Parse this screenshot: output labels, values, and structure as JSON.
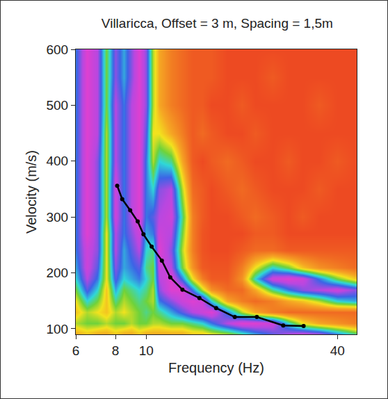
{
  "chart_data": {
    "type": "heatmap",
    "title": "Villaricca, Offset = 3 m, Spacing = 1,5m",
    "x_label": "Frequency (Hz)",
    "y_label": "Velocity (m/s)",
    "log": "x",
    "xlim": [
      6,
      46
    ],
    "xticks": [
      6,
      8,
      10,
      40
    ],
    "ylim": [
      90,
      600
    ],
    "yticks": [
      100,
      200,
      300,
      400,
      500,
      600
    ],
    "grid": false,
    "cells": {
      "x": [
        6,
        6.5,
        7,
        7.5,
        8,
        8.5,
        9,
        9.5,
        10,
        10.5,
        11,
        12,
        13,
        14,
        15,
        16,
        18,
        20,
        22,
        25,
        28,
        31,
        35,
        40,
        46
      ],
      "y": [
        90,
        110,
        130,
        150,
        170,
        190,
        210,
        240,
        270,
        300,
        350,
        400,
        450,
        500,
        550,
        600
      ],
      "zlim": [
        0,
        1
      ],
      "z": [
        [
          0.3,
          0.35,
          0.3,
          0.3,
          0.35,
          0.3,
          0.3,
          0.35,
          0.3,
          0.3,
          0.3,
          0.3,
          0.3,
          0.35,
          0.35,
          0.4,
          0.45,
          0.55,
          0.65,
          0.75,
          0.85,
          0.9,
          0.85,
          0.7,
          0.55
        ],
        [
          0.45,
          0.5,
          0.5,
          0.45,
          0.5,
          0.5,
          0.45,
          0.5,
          0.5,
          0.45,
          0.45,
          0.5,
          0.5,
          0.55,
          0.6,
          0.7,
          0.85,
          0.95,
          0.95,
          0.9,
          0.6,
          0.4,
          0.3,
          0.25,
          0.2
        ],
        [
          0.35,
          0.45,
          0.4,
          0.35,
          0.45,
          0.4,
          0.45,
          0.5,
          0.55,
          0.5,
          0.55,
          0.65,
          0.75,
          0.85,
          0.9,
          0.95,
          0.7,
          0.45,
          0.3,
          0.2,
          0.15,
          0.15,
          0.15,
          0.15,
          0.15
        ],
        [
          0.4,
          0.6,
          0.5,
          0.35,
          0.55,
          0.45,
          0.5,
          0.55,
          0.5,
          0.45,
          0.7,
          0.8,
          0.9,
          0.95,
          0.9,
          0.6,
          0.3,
          0.2,
          0.15,
          0.2,
          0.3,
          0.35,
          0.45,
          0.6,
          0.65
        ],
        [
          0.5,
          0.75,
          0.6,
          0.35,
          0.65,
          0.5,
          0.55,
          0.6,
          0.55,
          0.45,
          0.8,
          0.95,
          0.95,
          0.7,
          0.45,
          0.25,
          0.15,
          0.15,
          0.3,
          0.55,
          0.7,
          0.8,
          0.85,
          0.9,
          0.8
        ],
        [
          0.6,
          0.85,
          0.7,
          0.4,
          0.75,
          0.6,
          0.65,
          0.7,
          0.6,
          0.5,
          0.85,
          0.95,
          0.7,
          0.4,
          0.2,
          0.1,
          0.1,
          0.25,
          0.6,
          0.9,
          0.95,
          0.9,
          0.7,
          0.5,
          0.35
        ],
        [
          0.65,
          0.9,
          0.75,
          0.4,
          0.8,
          0.65,
          0.7,
          0.75,
          0.55,
          0.5,
          0.9,
          0.85,
          0.5,
          0.25,
          0.1,
          0.08,
          0.08,
          0.2,
          0.4,
          0.6,
          0.5,
          0.35,
          0.25,
          0.2,
          0.15
        ],
        [
          0.7,
          0.9,
          0.8,
          0.4,
          0.85,
          0.65,
          0.75,
          0.85,
          0.6,
          0.55,
          0.95,
          0.8,
          0.45,
          0.2,
          0.08,
          0.05,
          0.05,
          0.1,
          0.15,
          0.15,
          0.1,
          0.1,
          0.1,
          0.1,
          0.1
        ],
        [
          0.7,
          0.95,
          0.8,
          0.4,
          0.85,
          0.7,
          0.8,
          0.9,
          0.65,
          0.7,
          0.9,
          0.85,
          0.5,
          0.2,
          0.08,
          0.05,
          0.05,
          0.05,
          0.1,
          0.1,
          0.05,
          0.05,
          0.05,
          0.05,
          0.05
        ],
        [
          0.7,
          0.95,
          0.8,
          0.45,
          0.9,
          0.7,
          0.85,
          0.95,
          0.7,
          0.75,
          0.85,
          0.9,
          0.55,
          0.2,
          0.1,
          0.05,
          0.05,
          0.1,
          0.15,
          0.1,
          0.05,
          0.1,
          0.05,
          0.05,
          0.05
        ],
        [
          0.7,
          0.95,
          0.8,
          0.45,
          0.9,
          0.7,
          0.85,
          0.95,
          0.7,
          0.6,
          0.8,
          0.85,
          0.45,
          0.15,
          0.1,
          0.05,
          0.1,
          0.15,
          0.1,
          0.05,
          0.05,
          0.05,
          0.1,
          0.05,
          0.05
        ],
        [
          0.7,
          0.95,
          0.8,
          0.45,
          0.85,
          0.7,
          0.85,
          0.95,
          0.7,
          0.45,
          0.6,
          0.55,
          0.3,
          0.1,
          0.05,
          0.1,
          0.15,
          0.1,
          0.05,
          0.05,
          0.1,
          0.05,
          0.05,
          0.1,
          0.05
        ],
        [
          0.7,
          0.95,
          0.85,
          0.45,
          0.85,
          0.7,
          0.85,
          0.95,
          0.75,
          0.4,
          0.4,
          0.3,
          0.2,
          0.1,
          0.15,
          0.1,
          0.05,
          0.05,
          0.1,
          0.05,
          0.05,
          0.05,
          0.05,
          0.05,
          0.05
        ],
        [
          0.7,
          0.95,
          0.85,
          0.5,
          0.85,
          0.7,
          0.85,
          0.95,
          0.8,
          0.45,
          0.3,
          0.2,
          0.15,
          0.1,
          0.1,
          0.05,
          0.05,
          0.1,
          0.05,
          0.05,
          0.05,
          0.05,
          0.1,
          0.05,
          0.05
        ],
        [
          0.7,
          0.95,
          0.85,
          0.5,
          0.8,
          0.65,
          0.8,
          0.95,
          0.8,
          0.45,
          0.3,
          0.2,
          0.15,
          0.1,
          0.1,
          0.1,
          0.05,
          0.05,
          0.05,
          0.1,
          0.05,
          0.05,
          0.05,
          0.05,
          0.05
        ],
        [
          0.7,
          0.95,
          0.85,
          0.5,
          0.8,
          0.65,
          0.8,
          0.95,
          0.8,
          0.45,
          0.3,
          0.2,
          0.15,
          0.1,
          0.1,
          0.1,
          0.05,
          0.05,
          0.05,
          0.05,
          0.05,
          0.05,
          0.05,
          0.05,
          0.05
        ]
      ]
    },
    "series": [
      {
        "type": "line",
        "color": "#000000",
        "marker": "circle",
        "line_style": "solid",
        "x": [
          8.1,
          8.4,
          8.9,
          9.4,
          9.8,
          10.4,
          11.2,
          11.9,
          13.0,
          14.7,
          16.6,
          19.0,
          22.3,
          27.0,
          31.3
        ],
        "values": [
          356,
          332,
          312,
          292,
          269,
          247,
          222,
          192,
          170,
          155,
          137,
          121,
          121,
          106,
          105
        ]
      }
    ]
  }
}
